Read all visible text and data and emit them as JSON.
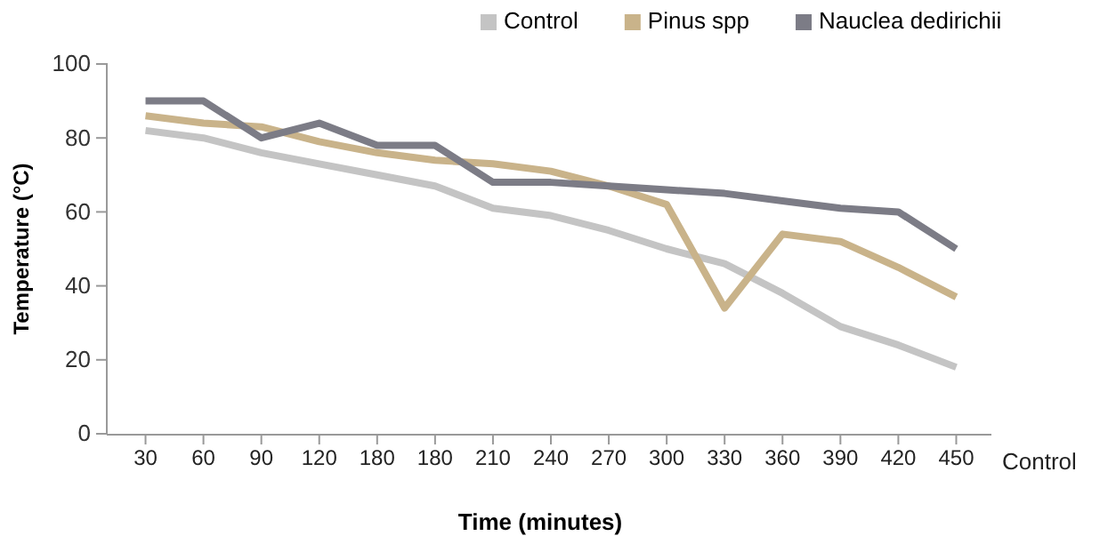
{
  "chart_data": {
    "type": "line",
    "xlabel": "Time (minutes)",
    "ylabel": "Temperature (°C)",
    "categories": [
      "30",
      "60",
      "90",
      "120",
      "180",
      "180",
      "210",
      "240",
      "270",
      "300",
      "330",
      "360",
      "390",
      "420",
      "450"
    ],
    "series": [
      {
        "name": "Control",
        "color": "#c4c4c4",
        "values": [
          82,
          80,
          76,
          73,
          70,
          67,
          61,
          59,
          55,
          50,
          46,
          38,
          29,
          24,
          18
        ]
      },
      {
        "name": "Pinus spp",
        "color": "#c9b38a",
        "values": [
          86,
          84,
          83,
          79,
          76,
          74,
          73,
          71,
          67,
          62,
          34,
          54,
          52,
          45,
          37
        ]
      },
      {
        "name": "Nauclea dedirichii",
        "color": "#7c7c86",
        "values": [
          90,
          90,
          80,
          84,
          78,
          78,
          68,
          68,
          67,
          66,
          65,
          63,
          61,
          60,
          50
        ]
      }
    ],
    "ylim": [
      0,
      100
    ],
    "yticks": [
      0,
      20,
      40,
      60,
      80,
      100
    ],
    "legend": "top right",
    "annotations": [
      "Control"
    ]
  }
}
